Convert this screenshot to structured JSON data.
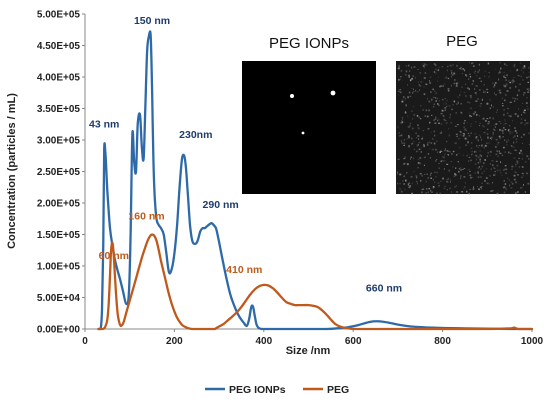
{
  "chart_data": {
    "type": "line",
    "title": "",
    "xlabel": "Size /nm",
    "ylabel": "Concentration (particles / mL)",
    "xlim": [
      0,
      1000
    ],
    "ylim": [
      0,
      500000
    ],
    "x_ticks": [
      "0",
      "200",
      "400",
      "600",
      "800",
      "1000"
    ],
    "y_ticks": [
      "0.00E+00",
      "5.00E+04",
      "1.00E+05",
      "1.50E+05",
      "2.00E+05",
      "2.50E+05",
      "3.00E+05",
      "3.50E+05",
      "4.00E+05",
      "4.50E+05",
      "5.00E+05"
    ],
    "legend_position": "bottom",
    "grid": false,
    "series": [
      {
        "name": "PEG IONPs",
        "color": "#2e6aa8",
        "x": [
          30,
          35,
          38,
          41,
          43,
          46,
          50,
          56,
          62,
          67,
          72,
          78,
          85,
          92,
          98,
          102,
          106,
          110,
          114,
          118,
          123,
          127,
          131,
          135,
          139,
          143,
          147,
          150,
          153,
          156,
          160,
          165,
          170,
          176,
          182,
          188,
          194,
          200,
          206,
          212,
          217,
          222,
          226,
          230,
          235,
          240,
          246,
          252,
          258,
          263,
          268,
          273,
          278,
          283,
          288,
          293,
          298,
          305,
          315,
          325,
          335,
          345,
          355,
          362,
          367,
          372,
          376,
          380,
          385,
          395,
          420,
          460,
          500,
          540,
          580,
          610,
          630,
          645,
          660,
          680,
          700,
          730,
          780,
          850,
          950,
          1000
        ],
        "y": [
          0,
          0,
          30000,
          140000,
          285000,
          275000,
          220000,
          160000,
          130000,
          110000,
          95000,
          80000,
          60000,
          40000,
          55000,
          150000,
          310000,
          265000,
          250000,
          325000,
          340000,
          290000,
          270000,
          350000,
          440000,
          465000,
          465000,
          380000,
          270000,
          210000,
          175000,
          165000,
          160000,
          150000,
          120000,
          90000,
          95000,
          120000,
          165000,
          230000,
          270000,
          275000,
          255000,
          215000,
          165000,
          140000,
          135000,
          140000,
          155000,
          160000,
          160000,
          163000,
          166000,
          168000,
          165000,
          160000,
          145000,
          120000,
          85000,
          55000,
          35000,
          20000,
          10000,
          5000,
          15000,
          35000,
          35000,
          20000,
          5000,
          0,
          0,
          0,
          0,
          0,
          2000,
          6000,
          10000,
          12000,
          12000,
          10000,
          7000,
          4000,
          2000,
          1000,
          0,
          0
        ]
      },
      {
        "name": "PEG",
        "color": "#c05a1c",
        "x": [
          30,
          40,
          45,
          50,
          53,
          56,
          58,
          60,
          62,
          64,
          67,
          70,
          73,
          76,
          80,
          86,
          92,
          98,
          104,
          110,
          116,
          122,
          128,
          134,
          140,
          146,
          150,
          155,
          160,
          165,
          170,
          176,
          182,
          188,
          194,
          200,
          206,
          212,
          218,
          225,
          232,
          240,
          250,
          260,
          270,
          280,
          290,
          295,
          300,
          310,
          320,
          330,
          340,
          350,
          360,
          370,
          380,
          390,
          400,
          410,
          420,
          430,
          440,
          450,
          460,
          470,
          480,
          490,
          500,
          510,
          520,
          530,
          540,
          550,
          560,
          570,
          580,
          590,
          600,
          620,
          650,
          700,
          800,
          900,
          950,
          960,
          970,
          1000
        ],
        "y": [
          0,
          0,
          3000,
          15000,
          40000,
          85000,
          120000,
          135000,
          135000,
          120000,
          85000,
          50000,
          25000,
          12000,
          5000,
          10000,
          25000,
          40000,
          55000,
          70000,
          85000,
          100000,
          115000,
          128000,
          140000,
          148000,
          150000,
          148000,
          140000,
          125000,
          108000,
          90000,
          72000,
          55000,
          40000,
          28000,
          18000,
          11000,
          6000,
          3000,
          1000,
          0,
          0,
          0,
          0,
          0,
          0,
          2000,
          4000,
          8000,
          14000,
          20000,
          27000,
          35000,
          45000,
          55000,
          63000,
          68000,
          70000,
          69000,
          65000,
          58000,
          50000,
          43000,
          40000,
          38000,
          38000,
          38000,
          38000,
          37000,
          35000,
          30000,
          23000,
          15000,
          8000,
          4000,
          2000,
          1000,
          0,
          0,
          0,
          0,
          0,
          0,
          1000,
          2000,
          0,
          0
        ]
      }
    ],
    "annotations": [
      {
        "text": "43 nm",
        "x": 43,
        "y": 285000,
        "series": 0
      },
      {
        "text": "150 nm",
        "x": 150,
        "y": 465000,
        "series": 0
      },
      {
        "text": "230nm",
        "x": 230,
        "y": 275000,
        "series": 0
      },
      {
        "text": "290 nm",
        "x": 290,
        "y": 168000,
        "series": 0
      },
      {
        "text": "660 nm",
        "x": 660,
        "y": 12000,
        "series": 0
      },
      {
        "text": "60 nm",
        "x": 60,
        "y": 135000,
        "series": 1
      },
      {
        "text": "160 nm",
        "x": 160,
        "y": 150000,
        "series": 1
      },
      {
        "text": "410 nm",
        "x": 410,
        "y": 70000,
        "series": 1
      }
    ]
  },
  "insets": {
    "peg_ionps": {
      "label": "PEG IONPs"
    },
    "peg": {
      "label": "PEG"
    }
  }
}
